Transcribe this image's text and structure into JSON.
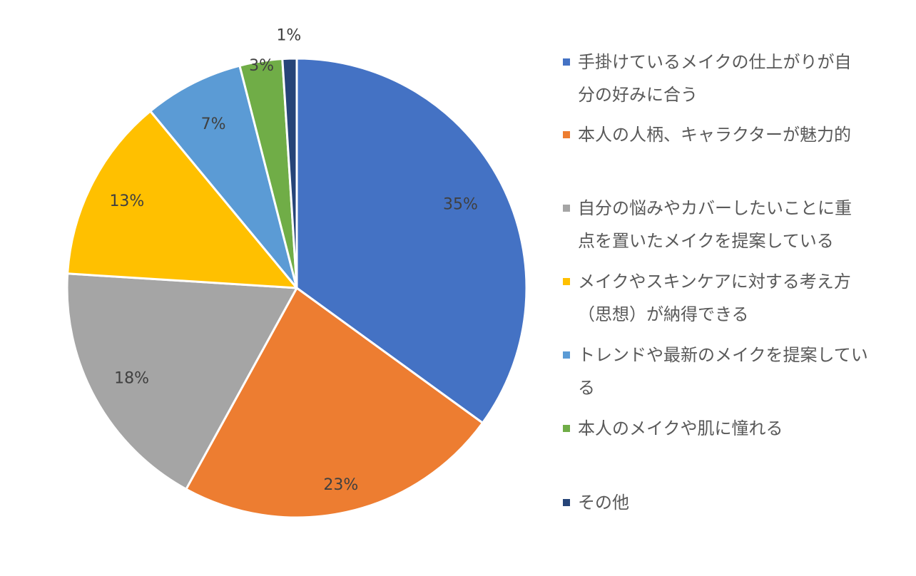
{
  "chart_data": {
    "type": "pie",
    "title": "",
    "legend_position": "right",
    "start_angle_deg": 0,
    "direction": "clockwise",
    "slices": [
      {
        "name": "手掛けているメイクの仕上がりが自分の好みに合う",
        "legend_lines": [
          "手掛けているメイクの仕上がりが自",
          "分の好みに合う"
        ],
        "value": 35,
        "label": "35%",
        "color": "#4472C4"
      },
      {
        "name": "本人の人柄、キャラクターが魅力的",
        "legend_lines": [
          "本人の人柄、キャラクターが魅力的"
        ],
        "value": 23,
        "label": "23%",
        "color": "#ED7D31"
      },
      {
        "name": "自分の悩みやカバーしたいことに重点を置いたメイクを提案している",
        "legend_lines": [
          "自分の悩みやカバーしたいことに重",
          "点を置いたメイクを提案している"
        ],
        "value": 18,
        "label": "18%",
        "color": "#A5A5A5"
      },
      {
        "name": "メイクやスキンケアに対する考え方（思想）が納得できる",
        "legend_lines": [
          "メイクやスキンケアに対する考え方",
          "（思想）が納得できる"
        ],
        "value": 13,
        "label": "13%",
        "color": "#FFC000"
      },
      {
        "name": "トレンドや最新のメイクを提案している",
        "legend_lines": [
          "トレンドや最新のメイクを提案してい",
          "る"
        ],
        "value": 7,
        "label": "7%",
        "color": "#5B9BD5"
      },
      {
        "name": "本人のメイクや肌に憧れる",
        "legend_lines": [
          "本人のメイクや肌に憧れる"
        ],
        "value": 3,
        "label": "3%",
        "color": "#70AD47"
      },
      {
        "name": "その他",
        "legend_lines": [
          "その他"
        ],
        "value": 1,
        "label": "1%",
        "color": "#264478"
      }
    ]
  }
}
